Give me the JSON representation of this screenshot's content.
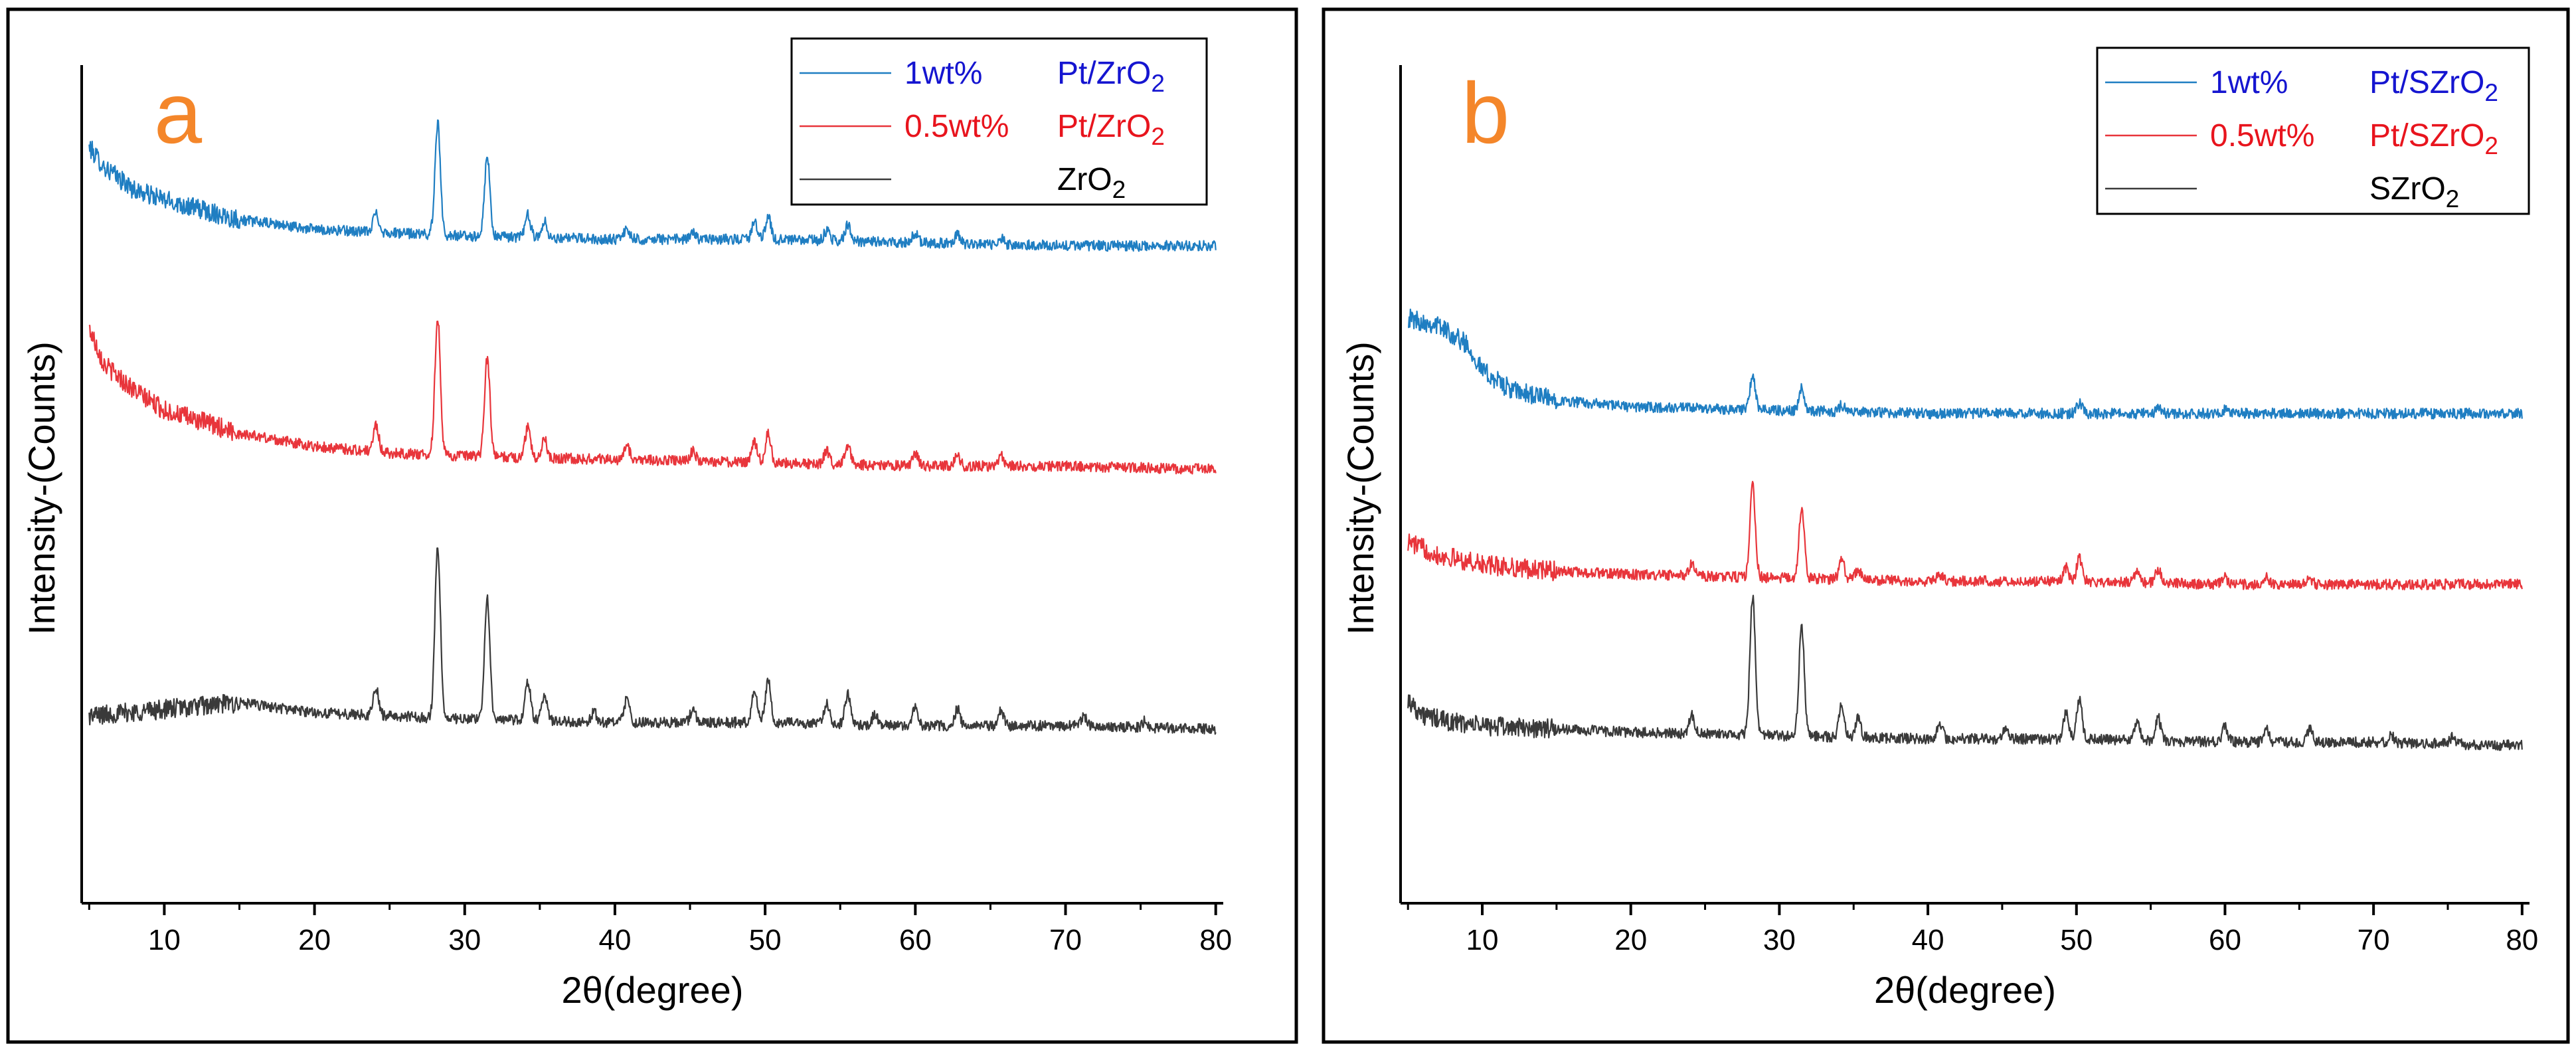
{
  "chart_data": [
    {
      "type": "line",
      "panel_label": "a",
      "xlabel": "2θ(degree)",
      "ylabel": "Intensity-(Counts)",
      "xlim": [
        4.5,
        80.5
      ],
      "xticks": [
        10,
        20,
        30,
        40,
        50,
        60,
        70,
        80
      ],
      "yaxis_ticks_shown": false,
      "legend_position": "top-right",
      "series": [
        {
          "name": "1wt% Pt/ZrO2",
          "legend_loading": "1wt%",
          "legend_material": "Pt/ZrO2",
          "color": "#1f7ec2",
          "label_color": "#1515d0",
          "peaks": [
            {
              "x": 24.1,
              "y": 0.06
            },
            {
              "x": 28.2,
              "y": 0.34
            },
            {
              "x": 31.5,
              "y": 0.24
            },
            {
              "x": 34.2,
              "y": 0.07
            },
            {
              "x": 35.3,
              "y": 0.05
            },
            {
              "x": 40.8,
              "y": 0.03
            },
            {
              "x": 45.2,
              "y": 0.02
            },
            {
              "x": 49.3,
              "y": 0.05
            },
            {
              "x": 50.2,
              "y": 0.07
            },
            {
              "x": 54.1,
              "y": 0.03
            },
            {
              "x": 55.5,
              "y": 0.05
            },
            {
              "x": 60.0,
              "y": 0.03
            },
            {
              "x": 62.8,
              "y": 0.03
            },
            {
              "x": 65.7,
              "y": 0.02
            }
          ],
          "points": [
            {
              "x": 5,
              "y": 2.3
            },
            {
              "x": 6,
              "y": 2.24
            },
            {
              "x": 8,
              "y": 2.17
            },
            {
              "x": 10,
              "y": 2.14
            },
            {
              "x": 15,
              "y": 2.08
            },
            {
              "x": 20,
              "y": 2.05
            },
            {
              "x": 25,
              "y": 2.04
            },
            {
              "x": 30,
              "y": 2.03
            },
            {
              "x": 40,
              "y": 2.02
            },
            {
              "x": 50,
              "y": 2.02
            },
            {
              "x": 60,
              "y": 2.01
            },
            {
              "x": 70,
              "y": 2.0
            },
            {
              "x": 80,
              "y": 2.0
            }
          ]
        },
        {
          "name": "0.5wt% Pt/ZrO2",
          "legend_loading": "0.5wt%",
          "legend_material": "Pt/ZrO2",
          "color": "#e8353b",
          "label_color": "#e8141d",
          "peaks": [
            {
              "x": 24.1,
              "y": 0.08
            },
            {
              "x": 28.2,
              "y": 0.42
            },
            {
              "x": 31.5,
              "y": 0.3
            },
            {
              "x": 34.2,
              "y": 0.09
            },
            {
              "x": 35.3,
              "y": 0.06
            },
            {
              "x": 40.8,
              "y": 0.04
            },
            {
              "x": 45.2,
              "y": 0.03
            },
            {
              "x": 49.3,
              "y": 0.06
            },
            {
              "x": 50.2,
              "y": 0.09
            },
            {
              "x": 54.1,
              "y": 0.04
            },
            {
              "x": 55.5,
              "y": 0.06
            },
            {
              "x": 60.0,
              "y": 0.04
            },
            {
              "x": 62.8,
              "y": 0.03
            },
            {
              "x": 65.7,
              "y": 0.03
            }
          ],
          "points": [
            {
              "x": 5,
              "y": 1.75
            },
            {
              "x": 6,
              "y": 1.64
            },
            {
              "x": 8,
              "y": 1.56
            },
            {
              "x": 10,
              "y": 1.5
            },
            {
              "x": 15,
              "y": 1.43
            },
            {
              "x": 20,
              "y": 1.39
            },
            {
              "x": 25,
              "y": 1.37
            },
            {
              "x": 30,
              "y": 1.36
            },
            {
              "x": 40,
              "y": 1.35
            },
            {
              "x": 50,
              "y": 1.34
            },
            {
              "x": 60,
              "y": 1.33
            },
            {
              "x": 70,
              "y": 1.33
            },
            {
              "x": 80,
              "y": 1.32
            }
          ]
        },
        {
          "name": "ZrO2",
          "legend_loading": "",
          "legend_material": "ZrO2",
          "color": "#3a3a3a",
          "label_color": "#000000",
          "peaks": [
            {
              "x": 24.1,
              "y": 0.08
            },
            {
              "x": 28.2,
              "y": 0.52
            },
            {
              "x": 31.5,
              "y": 0.37
            },
            {
              "x": 34.2,
              "y": 0.12
            },
            {
              "x": 35.3,
              "y": 0.08
            },
            {
              "x": 38.6,
              "y": 0.03
            },
            {
              "x": 40.8,
              "y": 0.07
            },
            {
              "x": 45.2,
              "y": 0.04
            },
            {
              "x": 49.3,
              "y": 0.1
            },
            {
              "x": 50.2,
              "y": 0.13
            },
            {
              "x": 54.1,
              "y": 0.06
            },
            {
              "x": 55.5,
              "y": 0.09
            },
            {
              "x": 57.3,
              "y": 0.03
            },
            {
              "x": 60.0,
              "y": 0.06
            },
            {
              "x": 62.8,
              "y": 0.05
            },
            {
              "x": 65.7,
              "y": 0.05
            },
            {
              "x": 71.2,
              "y": 0.03
            },
            {
              "x": 75.3,
              "y": 0.02
            }
          ],
          "points": [
            {
              "x": 5,
              "y": 0.57
            },
            {
              "x": 10,
              "y": 0.59
            },
            {
              "x": 15,
              "y": 0.61
            },
            {
              "x": 20,
              "y": 0.58
            },
            {
              "x": 25,
              "y": 0.57
            },
            {
              "x": 30,
              "y": 0.56
            },
            {
              "x": 40,
              "y": 0.55
            },
            {
              "x": 50,
              "y": 0.55
            },
            {
              "x": 60,
              "y": 0.54
            },
            {
              "x": 70,
              "y": 0.54
            },
            {
              "x": 80,
              "y": 0.53
            }
          ]
        }
      ]
    },
    {
      "type": "line",
      "panel_label": "b",
      "xlabel": "2θ(degree)",
      "ylabel": "Intensity-(Counts)",
      "xlim": [
        4.5,
        80.5
      ],
      "xticks": [
        10,
        20,
        30,
        40,
        50,
        60,
        70,
        80
      ],
      "yaxis_ticks_shown": false,
      "legend_position": "top-right",
      "series": [
        {
          "name": "1wt% Pt/SZrO2",
          "legend_loading": "1wt%",
          "legend_material": "Pt/SZrO2",
          "color": "#1f7ec2",
          "label_color": "#1515d0",
          "peaks": [
            {
              "x": 28.2,
              "y": 0.1
            },
            {
              "x": 31.5,
              "y": 0.07
            },
            {
              "x": 34.2,
              "y": 0.02
            },
            {
              "x": 50.2,
              "y": 0.03
            },
            {
              "x": 55.5,
              "y": 0.015
            },
            {
              "x": 60.0,
              "y": 0.01
            }
          ],
          "points": [
            {
              "x": 5,
              "y": 1.78
            },
            {
              "x": 7,
              "y": 1.76
            },
            {
              "x": 9,
              "y": 1.7
            },
            {
              "x": 10,
              "y": 1.62
            },
            {
              "x": 12,
              "y": 1.56
            },
            {
              "x": 15,
              "y": 1.53
            },
            {
              "x": 20,
              "y": 1.51
            },
            {
              "x": 30,
              "y": 1.5
            },
            {
              "x": 40,
              "y": 1.49
            },
            {
              "x": 50,
              "y": 1.49
            },
            {
              "x": 60,
              "y": 1.49
            },
            {
              "x": 70,
              "y": 1.49
            },
            {
              "x": 80,
              "y": 1.49
            }
          ]
        },
        {
          "name": "0.5wt% Pt/SZrO2",
          "legend_loading": "0.5wt%",
          "legend_material": "Pt/SZrO2",
          "color": "#e8353b",
          "label_color": "#e8141d",
          "peaks": [
            {
              "x": 24.1,
              "y": 0.04
            },
            {
              "x": 28.2,
              "y": 0.28
            },
            {
              "x": 31.5,
              "y": 0.21
            },
            {
              "x": 34.2,
              "y": 0.06
            },
            {
              "x": 35.3,
              "y": 0.03
            },
            {
              "x": 40.8,
              "y": 0.02
            },
            {
              "x": 49.3,
              "y": 0.04
            },
            {
              "x": 50.2,
              "y": 0.07
            },
            {
              "x": 54.1,
              "y": 0.03
            },
            {
              "x": 55.5,
              "y": 0.04
            },
            {
              "x": 60.0,
              "y": 0.02
            },
            {
              "x": 62.8,
              "y": 0.02
            },
            {
              "x": 65.7,
              "y": 0.02
            }
          ],
          "points": [
            {
              "x": 5,
              "y": 1.1
            },
            {
              "x": 7,
              "y": 1.06
            },
            {
              "x": 10,
              "y": 1.03
            },
            {
              "x": 15,
              "y": 1.01
            },
            {
              "x": 20,
              "y": 1.0
            },
            {
              "x": 30,
              "y": 0.99
            },
            {
              "x": 40,
              "y": 0.98
            },
            {
              "x": 50,
              "y": 0.98
            },
            {
              "x": 60,
              "y": 0.97
            },
            {
              "x": 70,
              "y": 0.97
            },
            {
              "x": 80,
              "y": 0.97
            }
          ]
        },
        {
          "name": "SZrO2",
          "legend_loading": "",
          "legend_material": "SZrO2",
          "color": "#3a3a3a",
          "label_color": "#000000",
          "peaks": [
            {
              "x": 24.1,
              "y": 0.06
            },
            {
              "x": 28.2,
              "y": 0.42
            },
            {
              "x": 31.5,
              "y": 0.33
            },
            {
              "x": 34.2,
              "y": 0.1
            },
            {
              "x": 35.3,
              "y": 0.06
            },
            {
              "x": 40.8,
              "y": 0.05
            },
            {
              "x": 45.2,
              "y": 0.03
            },
            {
              "x": 49.3,
              "y": 0.08
            },
            {
              "x": 50.2,
              "y": 0.12
            },
            {
              "x": 54.1,
              "y": 0.05
            },
            {
              "x": 55.5,
              "y": 0.07
            },
            {
              "x": 60.0,
              "y": 0.05
            },
            {
              "x": 62.8,
              "y": 0.04
            },
            {
              "x": 65.7,
              "y": 0.04
            },
            {
              "x": 71.2,
              "y": 0.02
            },
            {
              "x": 75.3,
              "y": 0.02
            }
          ],
          "points": [
            {
              "x": 5,
              "y": 0.62
            },
            {
              "x": 6,
              "y": 0.57
            },
            {
              "x": 8,
              "y": 0.55
            },
            {
              "x": 10,
              "y": 0.54
            },
            {
              "x": 20,
              "y": 0.52
            },
            {
              "x": 30,
              "y": 0.51
            },
            {
              "x": 40,
              "y": 0.5
            },
            {
              "x": 50,
              "y": 0.5
            },
            {
              "x": 60,
              "y": 0.49
            },
            {
              "x": 70,
              "y": 0.49
            },
            {
              "x": 80,
              "y": 0.48
            }
          ]
        }
      ]
    }
  ]
}
